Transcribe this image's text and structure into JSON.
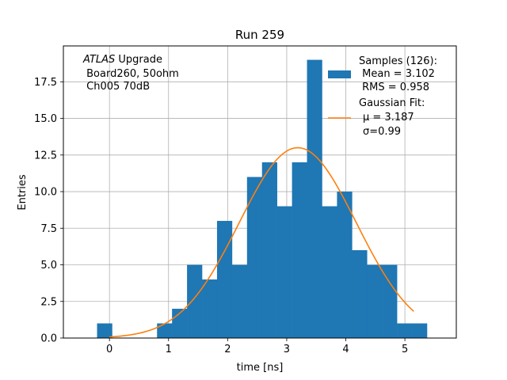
{
  "chart_data": {
    "type": "bar",
    "title": "Run 259",
    "xlabel": "time [ns]",
    "ylabel": "Entries",
    "xlim": [
      -0.78,
      5.87
    ],
    "ylim": [
      0,
      19.95
    ],
    "grid": true,
    "legend_placement": "top-right",
    "x_ticks": [
      0,
      1,
      2,
      3,
      4,
      5
    ],
    "y_ticks": [
      0.0,
      2.5,
      5.0,
      7.5,
      10.0,
      12.5,
      15.0,
      17.5
    ],
    "annotation": {
      "line1_italic": "ATLAS",
      "line1_rest": " Upgrade",
      "line2": " Board260, 50ohm",
      "line3": " Ch005 70dB"
    },
    "histogram": {
      "bin_start": -0.21,
      "bin_width": 0.2538,
      "counts": [
        1,
        0,
        0,
        0,
        1,
        2,
        5,
        4,
        8,
        5,
        11,
        12,
        9,
        12,
        19,
        9,
        10,
        6,
        5,
        5,
        1,
        1
      ],
      "color": "#1f77b4",
      "legend_lines": [
        "Samples (126):",
        " Mean = 3.102",
        " RMS = 0.958"
      ]
    },
    "fit": {
      "amplitude": 13.0,
      "mu": 3.187,
      "sigma": 0.99,
      "x_range": [
        0.0,
        5.15
      ],
      "color": "#ff7f0e",
      "legend_lines": [
        "Gaussian Fit:",
        "μ = 3.187",
        "σ=0.99"
      ]
    },
    "colors": {
      "grid": "#b0b0b0",
      "axes": "#000000"
    }
  }
}
